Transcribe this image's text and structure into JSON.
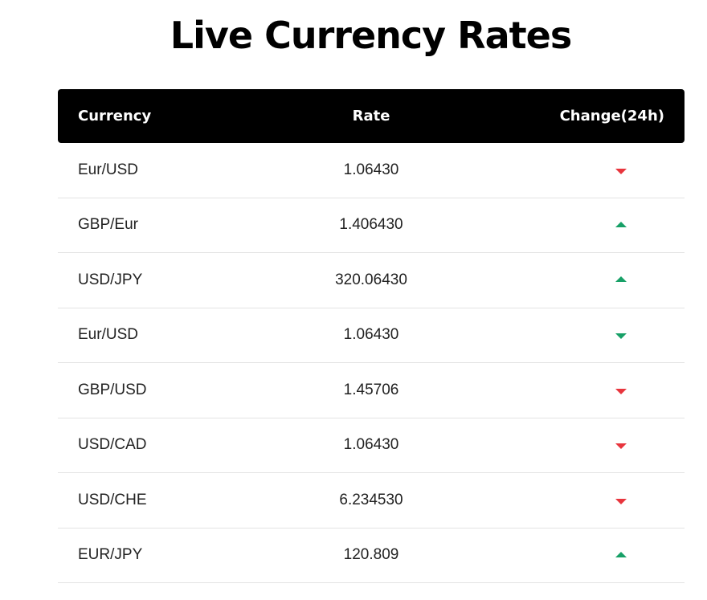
{
  "title": "Live Currency Rates",
  "colors": {
    "header_bg": "#000000",
    "down_red": "#e8353d",
    "up_green": "#17a067"
  },
  "table": {
    "headers": {
      "currency": "Currency",
      "rate": "Rate",
      "change": "Change(24h)"
    },
    "rows": [
      {
        "currency": "Eur/USD",
        "rate": "1.06430",
        "direction": "down",
        "color": "red",
        "icon": "triangle-down-icon"
      },
      {
        "currency": "GBP/Eur",
        "rate": "1.406430",
        "direction": "up",
        "color": "green",
        "icon": "triangle-up-icon"
      },
      {
        "currency": "USD/JPY",
        "rate": "320.06430",
        "direction": "up",
        "color": "green",
        "icon": "triangle-up-icon"
      },
      {
        "currency": "Eur/USD",
        "rate": "1.06430",
        "direction": "down",
        "color": "green",
        "icon": "triangle-down-icon"
      },
      {
        "currency": "GBP/USD",
        "rate": "1.45706",
        "direction": "down",
        "color": "red",
        "icon": "triangle-down-icon"
      },
      {
        "currency": "USD/CAD",
        "rate": "1.06430",
        "direction": "down",
        "color": "red",
        "icon": "triangle-down-icon"
      },
      {
        "currency": "USD/CHE",
        "rate": "6.234530",
        "direction": "down",
        "color": "red",
        "icon": "triangle-down-icon"
      },
      {
        "currency": "EUR/JPY",
        "rate": "120.809",
        "direction": "up",
        "color": "green",
        "icon": "triangle-up-icon"
      }
    ]
  }
}
